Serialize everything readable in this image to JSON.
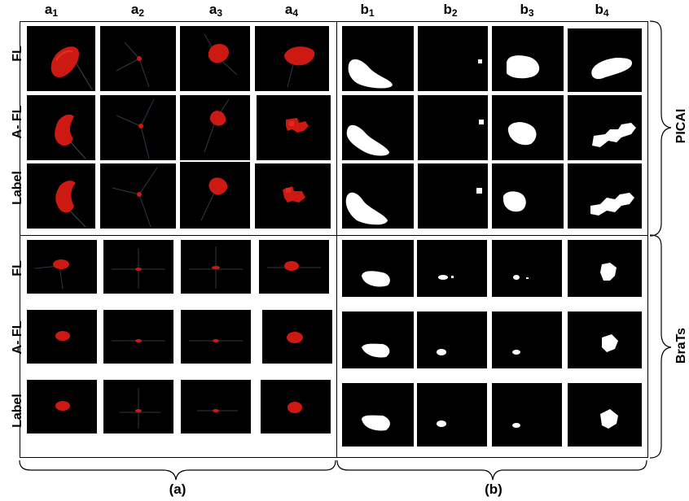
{
  "column_headers": {
    "a": [
      {
        "base": "a",
        "sub": "1"
      },
      {
        "base": "a",
        "sub": "2"
      },
      {
        "base": "a",
        "sub": "3"
      },
      {
        "base": "a",
        "sub": "4"
      }
    ],
    "b": [
      {
        "base": "b",
        "sub": "1"
      },
      {
        "base": "b",
        "sub": "2"
      },
      {
        "base": "b",
        "sub": "3"
      },
      {
        "base": "b",
        "sub": "4"
      }
    ]
  },
  "row_labels": {
    "picai": [
      "FL",
      "A- FL",
      "Label"
    ],
    "brats": [
      "FL",
      "A- FL",
      "Label"
    ]
  },
  "group_labels": {
    "picai": "PICAI",
    "brats": "BraTs"
  },
  "bottom_labels": {
    "a": "(a)",
    "b": "(b)"
  },
  "colors": {
    "render_red": "#cc1a12",
    "mask_white": "#ffffff",
    "background": "#000000"
  }
}
